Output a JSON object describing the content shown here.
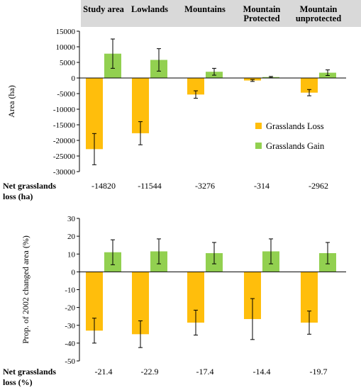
{
  "header": {
    "categories": [
      "Study area",
      "Lowlands",
      "Mountains",
      "Mountain\nProtected",
      "Mountain\nunprotected"
    ]
  },
  "colors": {
    "loss": "#FFBE0C",
    "gain": "#92D050",
    "header_bg": "#D9D9D9"
  },
  "chart_data": [
    {
      "type": "bar",
      "ylabel": "Area (ha)",
      "ylim": [
        -30000,
        15000
      ],
      "yticks": [
        15000,
        10000,
        5000,
        0,
        -5000,
        -10000,
        -15000,
        -20000,
        -25000,
        -30000
      ],
      "legend": {
        "position": "right",
        "entries": [
          "Grasslands Loss",
          "Grasslands Gain"
        ]
      },
      "series": [
        {
          "name": "Grasslands Loss",
          "values": [
            -22800,
            -17700,
            -5300,
            -800,
            -4700
          ],
          "err": [
            5000,
            3700,
            1200,
            300,
            1000
          ]
        },
        {
          "name": "Grasslands Gain",
          "values": [
            7800,
            5800,
            2000,
            300,
            1700
          ],
          "err": [
            4700,
            3600,
            1100,
            200,
            900
          ]
        }
      ],
      "net_row": {
        "label": "Net grasslands\nloss (ha)",
        "values": [
          "-14820",
          "-11544",
          "-3276",
          "-314",
          "-2962"
        ]
      }
    },
    {
      "type": "bar",
      "ylabel": "Prop. of 2002 changed area (%)",
      "ylim": [
        -50,
        30
      ],
      "yticks": [
        30,
        20,
        10,
        0,
        -10,
        -20,
        -30,
        -40,
        -50
      ],
      "series": [
        {
          "name": "Grasslands Loss",
          "values": [
            -33,
            -35,
            -28.5,
            -26.5,
            -28.5
          ],
          "err": [
            7,
            7.5,
            7,
            11.5,
            6.5
          ]
        },
        {
          "name": "Grasslands Gain",
          "values": [
            11,
            11.5,
            10.5,
            11.5,
            10.5
          ],
          "err": [
            7,
            7,
            6,
            7,
            6
          ]
        }
      ],
      "net_row": {
        "label": "Net grasslands\nloss (%)",
        "values": [
          "-21.4",
          "-22.9",
          "-17.4",
          "-14.4",
          "-19.7"
        ]
      }
    }
  ]
}
